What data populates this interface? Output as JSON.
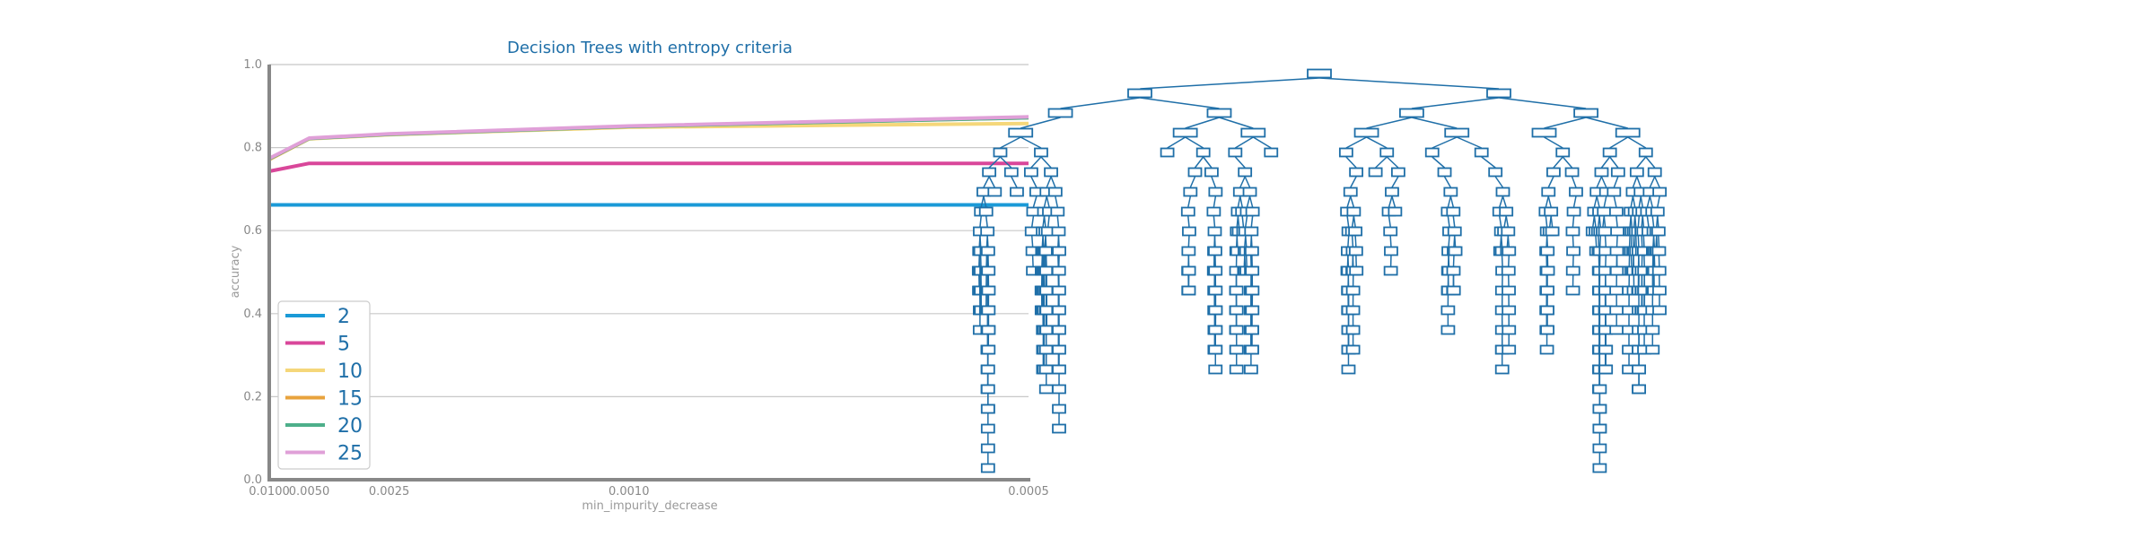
{
  "chart_data": [
    {
      "type": "line",
      "title": "Decision Trees with entropy criteria",
      "xlabel": "min_impurity_decrease",
      "ylabel": "accuracy",
      "x_scale": "reciprocal",
      "x_ticks": [
        0.01,
        0.005,
        0.0025,
        0.001,
        0.0005
      ],
      "x_tick_labels": [
        "0.0100",
        "0.0050",
        "0.0025",
        "0.0010",
        "0.0005"
      ],
      "ylim": [
        0.0,
        1.0
      ],
      "y_ticks": [
        0.0,
        0.2,
        0.4,
        0.6,
        0.8,
        1.0
      ],
      "y_tick_labels": [
        "0.0",
        "0.2",
        "0.4",
        "0.6",
        "0.8",
        "1.0"
      ],
      "grid": "horizontal",
      "legend_position": "bottom-left",
      "x": [
        0.01,
        0.005,
        0.0025,
        0.001,
        0.0005
      ],
      "series": [
        {
          "name": "2",
          "color": "#1a9ad7",
          "values": [
            0.662,
            0.662,
            0.662,
            0.662,
            0.662
          ]
        },
        {
          "name": "5",
          "color": "#d9479a",
          "values": [
            0.743,
            0.762,
            0.762,
            0.762,
            0.762
          ]
        },
        {
          "name": "10",
          "color": "#f5d77a",
          "values": [
            0.771,
            0.821,
            0.831,
            0.849,
            0.858
          ]
        },
        {
          "name": "15",
          "color": "#e8a33d",
          "values": [
            0.772,
            0.822,
            0.832,
            0.851,
            0.872
          ]
        },
        {
          "name": "20",
          "color": "#4daf8a",
          "values": [
            0.773,
            0.822,
            0.832,
            0.851,
            0.872
          ]
        },
        {
          "name": "25",
          "color": "#e0a0d8",
          "values": [
            0.774,
            0.823,
            0.833,
            0.852,
            0.874
          ]
        }
      ]
    },
    {
      "type": "diagram",
      "kind": "decision-tree",
      "node_color": "#1f6fa8"
    }
  ]
}
